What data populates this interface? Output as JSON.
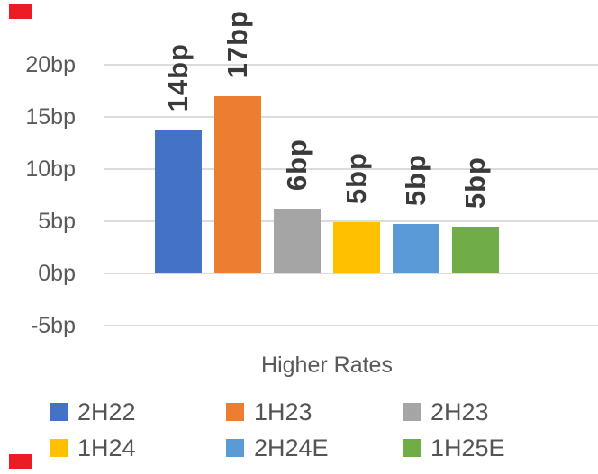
{
  "chart_data": {
    "type": "bar",
    "title": "",
    "xlabel": "Higher Rates",
    "ylabel": "",
    "unit": "bp",
    "categories": [
      "2H22",
      "1H23",
      "2H23",
      "1H24",
      "2H24E",
      "1H25E"
    ],
    "values": [
      13.8,
      17,
      6.2,
      4.9,
      4.75,
      4.5
    ],
    "data_labels": [
      "14bp",
      "17bp",
      "6bp",
      "5bp",
      "5bp",
      "5bp"
    ],
    "colors": [
      "#4472C4",
      "#ED7D31",
      "#A5A5A5",
      "#FFC000",
      "#5B9BD5",
      "#70AD47"
    ],
    "y_ticks": [
      "20bp",
      "15bp",
      "10bp",
      "5bp",
      "0bp",
      "-5bp"
    ],
    "y_tick_values": [
      20,
      15,
      10,
      5,
      0,
      -5
    ],
    "ylim": [
      -5,
      22
    ],
    "grid": true,
    "gridline_color": "#DCDCDC",
    "axis_text_color": "#595959",
    "data_label_color": "#3A3A3A",
    "legend_position": "bottom",
    "legend_rows": [
      [
        "2H22",
        "1H23",
        "2H23"
      ],
      [
        "1H24",
        "2H24E",
        "1H25E"
      ]
    ]
  },
  "marks": {
    "top_left": "red-mark",
    "bottom_left": "red-mark"
  }
}
